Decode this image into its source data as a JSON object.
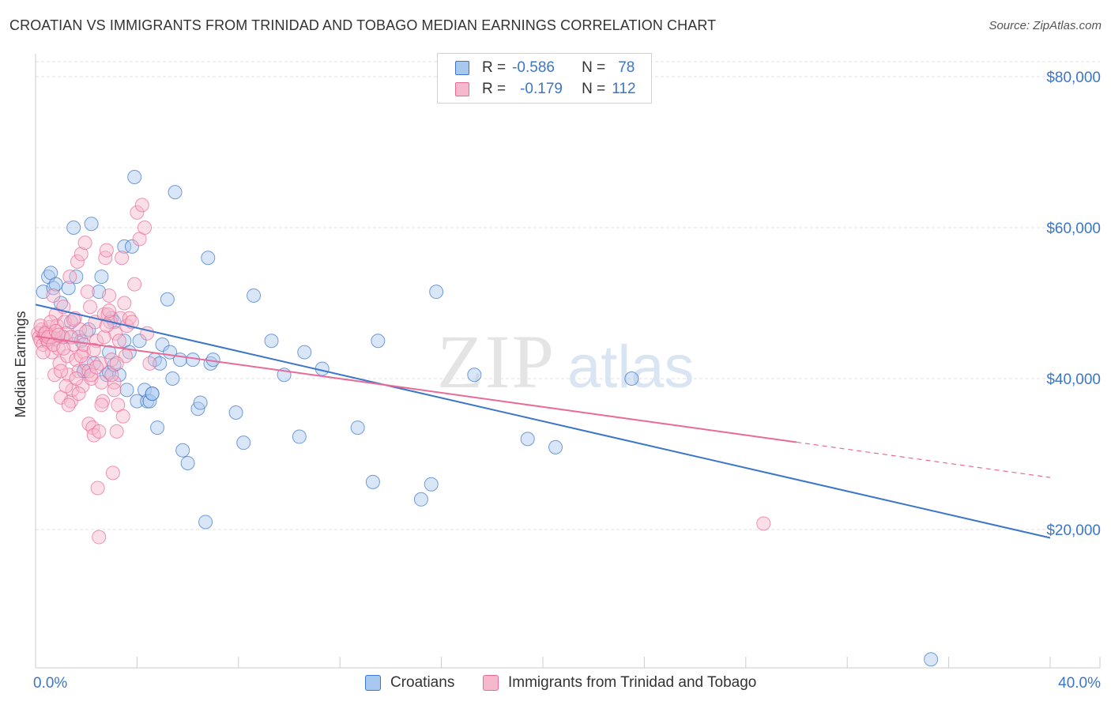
{
  "title": "CROATIAN VS IMMIGRANTS FROM TRINIDAD AND TOBAGO MEDIAN EARNINGS CORRELATION CHART",
  "source": "Source: ZipAtlas.com",
  "colors": {
    "blue": "#3b76c8",
    "blue_fill": "#a8c8ef",
    "pink": "#e96a96",
    "pink_fill": "#f6b8cd",
    "grid": "#e2e2e2",
    "axis_text": "#3b76c8"
  },
  "legend": {
    "rows": [
      {
        "r_label": "R =",
        "r_value": "-0.586",
        "n_label": "N =",
        "n_value": "78"
      },
      {
        "r_label": "R =",
        "r_value": "-0.179",
        "n_label": "N =",
        "n_value": "112"
      }
    ]
  },
  "watermark": {
    "part1": "ZIP",
    "part2": "atlas"
  },
  "chart_data": {
    "type": "scatter",
    "title": "CROATIAN VS IMMIGRANTS FROM TRINIDAD AND TOBAGO MEDIAN EARNINGS CORRELATION CHART",
    "xlabel": "",
    "ylabel": "Median Earnings",
    "xlim": [
      0,
      40
    ],
    "ylim": [
      0,
      82000
    ],
    "x_tick_labels": [
      "0.0%",
      "40.0%"
    ],
    "y_ticks": [
      20000,
      40000,
      60000,
      80000
    ],
    "y_tick_labels": [
      "$20,000",
      "$40,000",
      "$60,000",
      "$80,000"
    ],
    "grid": true,
    "legend_position": "top-center and bottom",
    "series": [
      {
        "name": "Croatians",
        "color": "#3b76c8",
        "r": -0.586,
        "n": 78,
        "trend": {
          "x": [
            0,
            40
          ],
          "y": [
            49800,
            18900
          ],
          "dashed_from": null
        },
        "points": [
          [
            0.3,
            51500
          ],
          [
            0.5,
            53500
          ],
          [
            0.6,
            54000
          ],
          [
            0.7,
            52000
          ],
          [
            0.8,
            52500
          ],
          [
            1.0,
            50000
          ],
          [
            1.1,
            45500
          ],
          [
            1.3,
            52000
          ],
          [
            1.4,
            47500
          ],
          [
            1.5,
            60000
          ],
          [
            1.6,
            53500
          ],
          [
            1.7,
            45500
          ],
          [
            1.8,
            45000
          ],
          [
            1.9,
            41000
          ],
          [
            2.1,
            46500
          ],
          [
            2.2,
            60500
          ],
          [
            2.3,
            42000
          ],
          [
            2.5,
            51500
          ],
          [
            2.6,
            53500
          ],
          [
            2.8,
            40500
          ],
          [
            2.9,
            43500
          ],
          [
            3.0,
            48000
          ],
          [
            3.1,
            47500
          ],
          [
            3.3,
            40500
          ],
          [
            3.5,
            57500
          ],
          [
            3.5,
            45000
          ],
          [
            3.6,
            38500
          ],
          [
            3.7,
            43500
          ],
          [
            3.8,
            57500
          ],
          [
            3.9,
            66700
          ],
          [
            4.0,
            37000
          ],
          [
            4.1,
            45000
          ],
          [
            4.3,
            38500
          ],
          [
            4.4,
            37000
          ],
          [
            4.5,
            37000
          ],
          [
            4.6,
            38000
          ],
          [
            4.7,
            42500
          ],
          [
            4.8,
            33500
          ],
          [
            4.9,
            42000
          ],
          [
            5.0,
            44500
          ],
          [
            5.2,
            50500
          ],
          [
            5.3,
            43500
          ],
          [
            5.4,
            40000
          ],
          [
            5.5,
            64700
          ],
          [
            5.7,
            42500
          ],
          [
            5.8,
            30500
          ],
          [
            6.0,
            28800
          ],
          [
            6.2,
            42500
          ],
          [
            6.4,
            36000
          ],
          [
            6.5,
            36800
          ],
          [
            6.7,
            21000
          ],
          [
            6.8,
            56000
          ],
          [
            6.9,
            42000
          ],
          [
            7.0,
            42500
          ],
          [
            7.9,
            35500
          ],
          [
            8.2,
            31500
          ],
          [
            8.6,
            51000
          ],
          [
            9.3,
            45000
          ],
          [
            9.8,
            40500
          ],
          [
            10.4,
            32300
          ],
          [
            10.6,
            43500
          ],
          [
            11.3,
            41300
          ],
          [
            12.7,
            33500
          ],
          [
            13.3,
            26300
          ],
          [
            13.5,
            45000
          ],
          [
            15.2,
            24000
          ],
          [
            15.6,
            26000
          ],
          [
            15.8,
            51500
          ],
          [
            17.3,
            40500
          ],
          [
            19.4,
            32000
          ],
          [
            20.5,
            30900
          ],
          [
            23.5,
            40000
          ],
          [
            35.3,
            2800
          ],
          [
            4.6,
            38000
          ],
          [
            2.9,
            40800
          ],
          [
            3.1,
            41800
          ],
          [
            1.9,
            41000
          ],
          [
            0.8,
            45300
          ]
        ]
      },
      {
        "name": "Immigrants from Trinidad and Tobago",
        "color": "#e96a96",
        "r": -0.179,
        "n": 112,
        "trend": {
          "x": [
            0,
            40
          ],
          "y": [
            45600,
            26900
          ],
          "dashed_from": 30
        },
        "points": [
          [
            0.1,
            46000
          ],
          [
            0.15,
            45500
          ],
          [
            0.2,
            45000
          ],
          [
            0.25,
            46500
          ],
          [
            0.3,
            44500
          ],
          [
            0.35,
            45800
          ],
          [
            0.4,
            46200
          ],
          [
            0.45,
            45200
          ],
          [
            0.5,
            44800
          ],
          [
            0.55,
            46800
          ],
          [
            0.6,
            45500
          ],
          [
            0.65,
            43500
          ],
          [
            0.7,
            51000
          ],
          [
            0.75,
            40500
          ],
          [
            0.8,
            48500
          ],
          [
            0.85,
            47000
          ],
          [
            0.9,
            44000
          ],
          [
            0.95,
            42000
          ],
          [
            1.0,
            37500
          ],
          [
            1.05,
            45500
          ],
          [
            1.1,
            49500
          ],
          [
            1.15,
            47500
          ],
          [
            1.2,
            46000
          ],
          [
            1.25,
            43000
          ],
          [
            1.3,
            40500
          ],
          [
            1.35,
            53500
          ],
          [
            1.4,
            37000
          ],
          [
            1.45,
            38500
          ],
          [
            1.5,
            44500
          ],
          [
            1.55,
            48000
          ],
          [
            1.6,
            42500
          ],
          [
            1.65,
            55500
          ],
          [
            1.7,
            41000
          ],
          [
            1.75,
            46500
          ],
          [
            1.8,
            56500
          ],
          [
            1.85,
            39000
          ],
          [
            1.9,
            43500
          ],
          [
            1.95,
            58000
          ],
          [
            2.0,
            42000
          ],
          [
            2.05,
            51500
          ],
          [
            2.1,
            34000
          ],
          [
            2.15,
            49500
          ],
          [
            2.2,
            40000
          ],
          [
            2.25,
            33500
          ],
          [
            2.3,
            32500
          ],
          [
            2.35,
            47500
          ],
          [
            2.4,
            45000
          ],
          [
            2.45,
            25500
          ],
          [
            2.5,
            19000
          ],
          [
            2.55,
            42000
          ],
          [
            2.6,
            39500
          ],
          [
            2.65,
            37000
          ],
          [
            2.7,
            48500
          ],
          [
            2.75,
            56000
          ],
          [
            2.8,
            57000
          ],
          [
            2.85,
            48500
          ],
          [
            2.9,
            51000
          ],
          [
            2.95,
            47500
          ],
          [
            3.0,
            42500
          ],
          [
            3.05,
            27500
          ],
          [
            3.1,
            39500
          ],
          [
            3.15,
            46000
          ],
          [
            3.2,
            33000
          ],
          [
            3.25,
            36500
          ],
          [
            3.3,
            45000
          ],
          [
            3.35,
            48000
          ],
          [
            3.4,
            56000
          ],
          [
            3.45,
            35000
          ],
          [
            3.5,
            50000
          ],
          [
            3.55,
            43000
          ],
          [
            3.6,
            47000
          ],
          [
            3.7,
            48000
          ],
          [
            3.8,
            47500
          ],
          [
            3.9,
            52500
          ],
          [
            4.0,
            62000
          ],
          [
            4.1,
            58500
          ],
          [
            4.2,
            63000
          ],
          [
            4.3,
            60000
          ],
          [
            4.4,
            46000
          ],
          [
            4.5,
            42000
          ],
          [
            0.2,
            47000
          ],
          [
            0.3,
            43500
          ],
          [
            0.4,
            46000
          ],
          [
            0.5,
            45500
          ],
          [
            0.6,
            47500
          ],
          [
            0.7,
            44500
          ],
          [
            0.8,
            46300
          ],
          [
            0.9,
            45800
          ],
          [
            1.0,
            41000
          ],
          [
            1.1,
            44000
          ],
          [
            1.2,
            39000
          ],
          [
            1.3,
            36500
          ],
          [
            1.4,
            45500
          ],
          [
            1.5,
            47800
          ],
          [
            1.6,
            40000
          ],
          [
            1.7,
            38000
          ],
          [
            1.8,
            43000
          ],
          [
            1.9,
            44500
          ],
          [
            2.0,
            46200
          ],
          [
            2.1,
            41000
          ],
          [
            2.2,
            40500
          ],
          [
            2.3,
            43800
          ],
          [
            2.4,
            41500
          ],
          [
            2.5,
            33000
          ],
          [
            2.6,
            36500
          ],
          [
            2.7,
            45500
          ],
          [
            2.8,
            47000
          ],
          [
            2.9,
            49000
          ],
          [
            3.0,
            40500
          ],
          [
            3.1,
            38500
          ],
          [
            28.7,
            20800
          ],
          [
            3.2,
            42000
          ]
        ]
      }
    ]
  }
}
